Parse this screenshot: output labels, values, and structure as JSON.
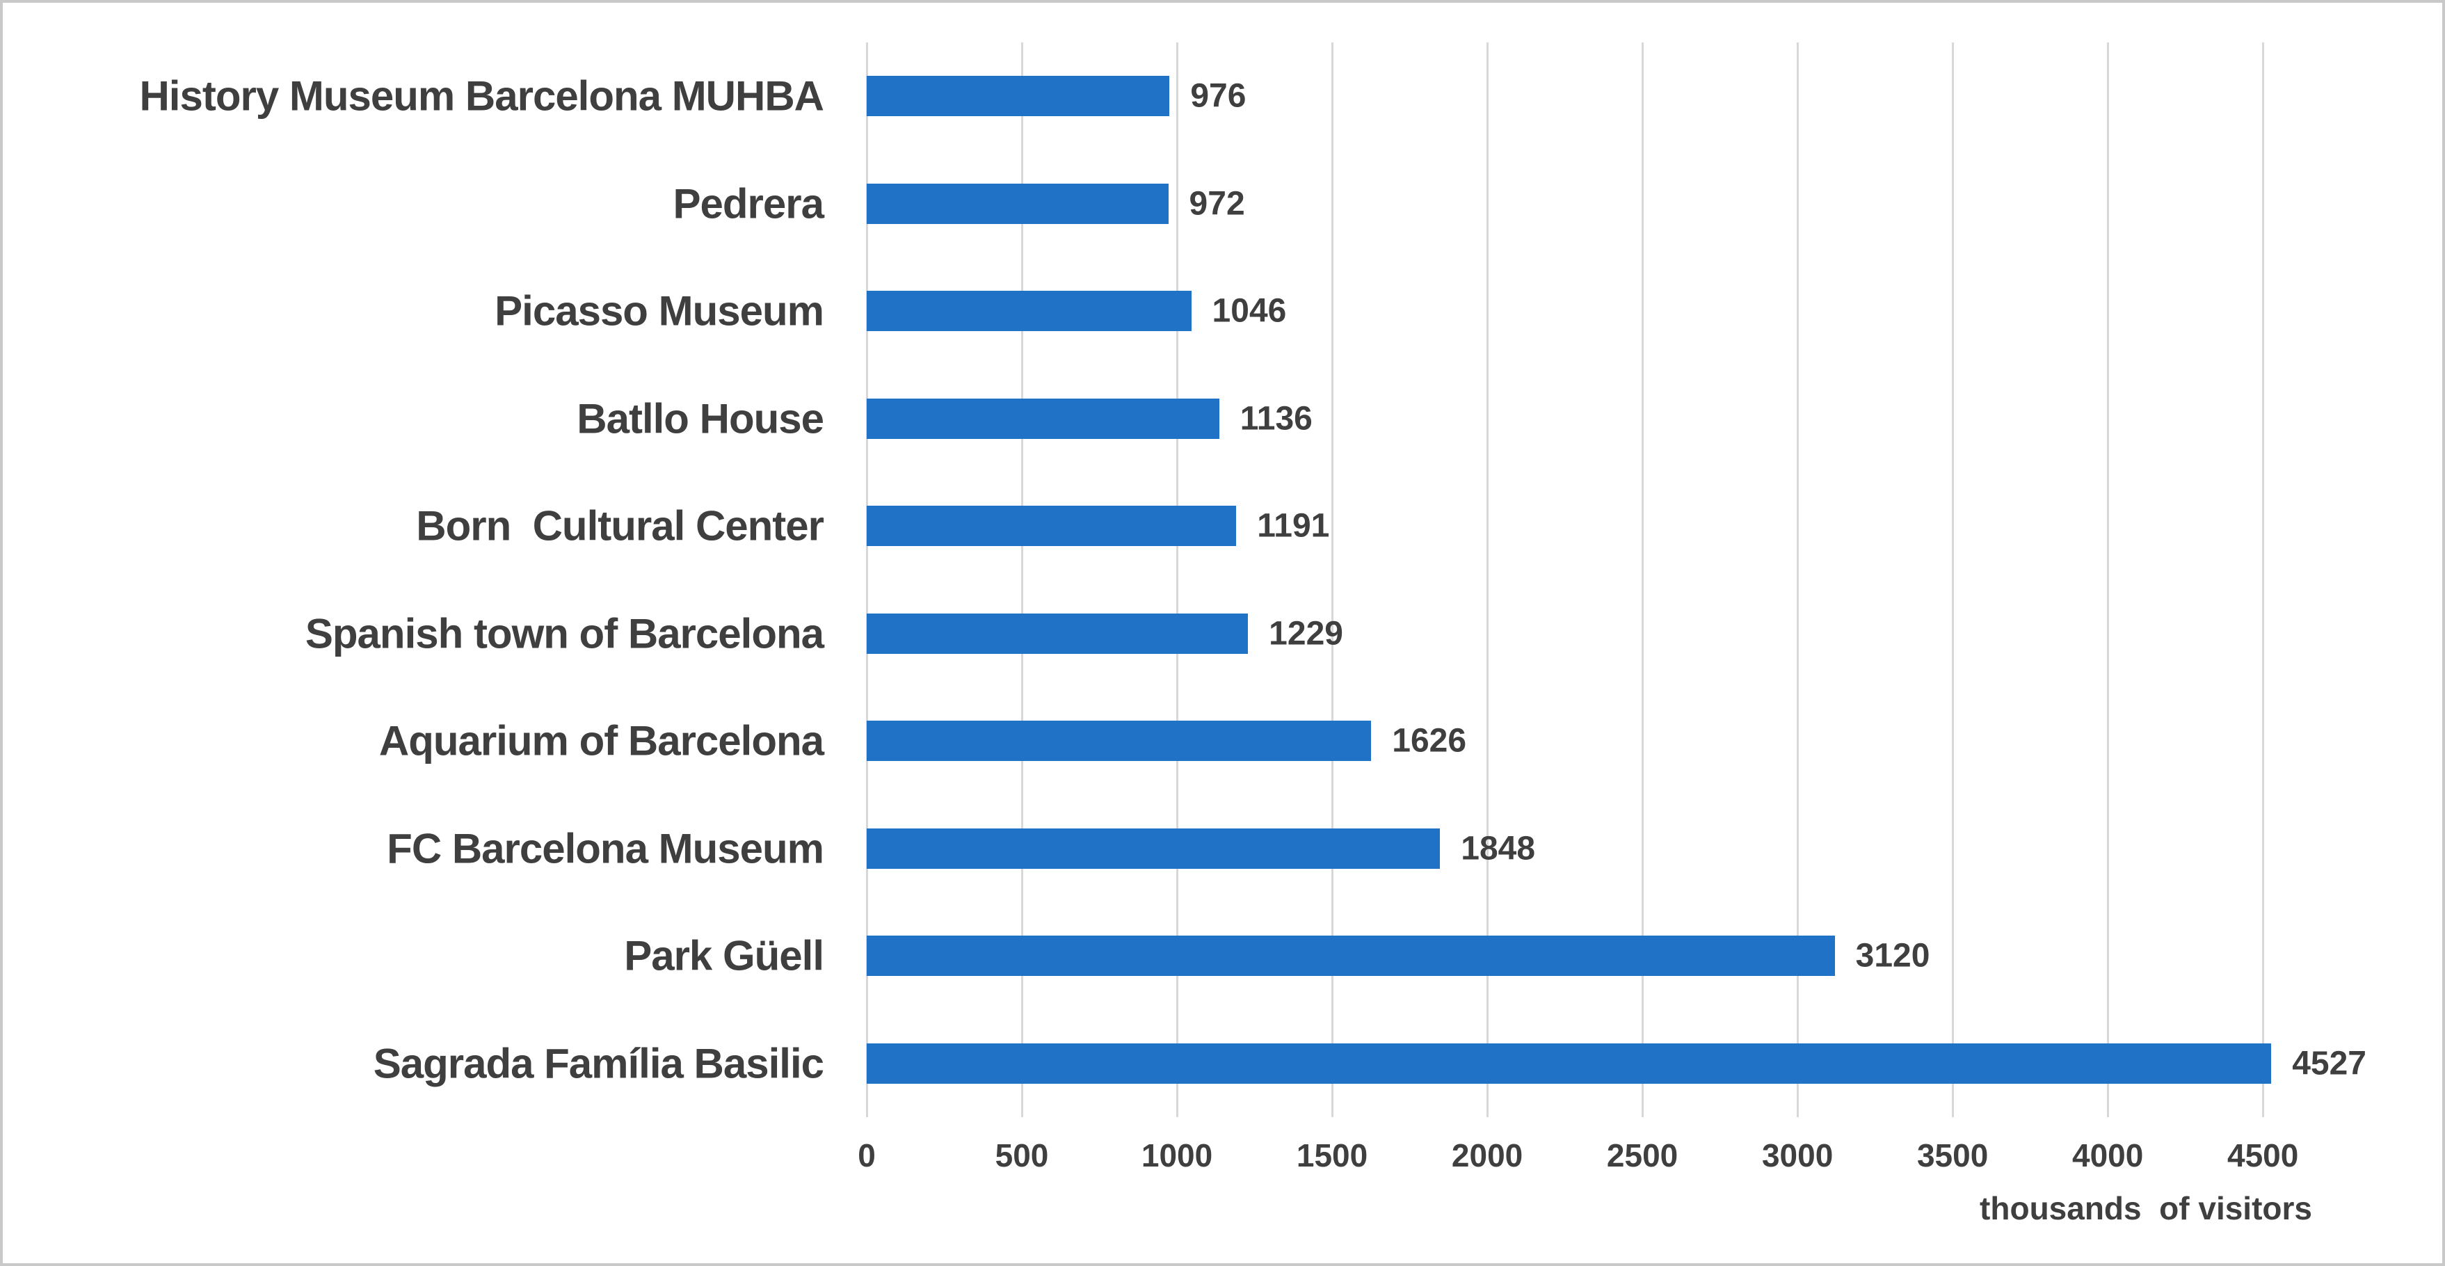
{
  "chart_data": {
    "type": "bar",
    "orientation": "horizontal",
    "title": "",
    "xlabel": "thousands  of visitors",
    "ylabel": "",
    "categories": [
      "History Museum Barcelona MUHBA",
      "Pedrera",
      "Picasso Museum",
      "Batllo House",
      "Born  Cultural Center",
      "Spanish town of Barcelona",
      "Aquarium of Barcelona",
      "FC Barcelona Museum",
      "Park Güell",
      "Sagrada Família Basilic"
    ],
    "values": [
      976,
      972,
      1046,
      1136,
      1191,
      1229,
      1626,
      1848,
      3120,
      4527
    ],
    "x_ticks": [
      0,
      500,
      1000,
      1500,
      2000,
      2500,
      3000,
      3500,
      4000,
      4500
    ],
    "xlim": [
      0,
      4800
    ],
    "grid": true,
    "legend": false,
    "colors": {
      "bar": "#1f72c6",
      "text": "#3f3f3f",
      "gridline": "#d8d8d8",
      "border": "#c9c9c9",
      "background": "#ffffff"
    }
  }
}
